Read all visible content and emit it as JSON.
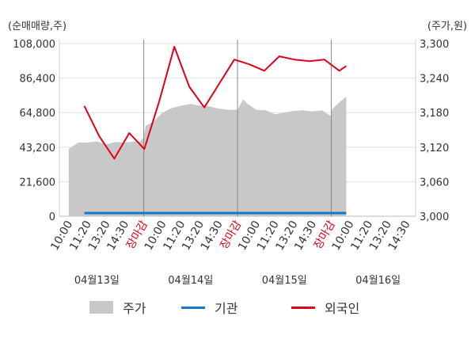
{
  "chart_data": {
    "type": "line",
    "left_axis_unit": "(순매매량,주)",
    "right_axis_unit": "(주가,원)",
    "left_ticks": [
      "108,000",
      "86,400",
      "64,800",
      "43,200",
      "21,600",
      "0"
    ],
    "right_ticks": [
      "3,300",
      "3,240",
      "3,180",
      "3,120",
      "3,060",
      "3,000"
    ],
    "ylim_left": [
      0,
      108000
    ],
    "ylim_right": [
      3000,
      3300
    ],
    "x_ticks": [
      {
        "label": "10:00",
        "color": "#333333"
      },
      {
        "label": "11:20",
        "color": "#333333"
      },
      {
        "label": "13:20",
        "color": "#333333"
      },
      {
        "label": "14:30",
        "color": "#333333"
      },
      {
        "label": "장마감",
        "color": "#e0001b"
      },
      {
        "label": "10:00",
        "color": "#333333"
      },
      {
        "label": "11:20",
        "color": "#333333"
      },
      {
        "label": "13:20",
        "color": "#333333"
      },
      {
        "label": "14:30",
        "color": "#333333"
      },
      {
        "label": "장마감",
        "color": "#e0001b"
      },
      {
        "label": "10:00",
        "color": "#333333"
      },
      {
        "label": "11:20",
        "color": "#333333"
      },
      {
        "label": "13:20",
        "color": "#333333"
      },
      {
        "label": "14:30",
        "color": "#333333"
      },
      {
        "label": "장마감",
        "color": "#e0001b"
      },
      {
        "label": "10:00",
        "color": "#333333"
      },
      {
        "label": "11:20",
        "color": "#333333"
      },
      {
        "label": "13:20",
        "color": "#333333"
      },
      {
        "label": "14:30",
        "color": "#333333"
      }
    ],
    "dates": [
      "04월13일",
      "04월14일",
      "04월15일",
      "04월16일"
    ],
    "price_series": {
      "name": "주가",
      "color": "#c8c8c8",
      "x": [
        0,
        0.5,
        1,
        1.5,
        2,
        2.5,
        3,
        3.5,
        3.8,
        4,
        4.1,
        4.5,
        5,
        5.5,
        6,
        6.5,
        7,
        7.5,
        8,
        8.5,
        9,
        9.3,
        9.5,
        10,
        10.5,
        11,
        11.5,
        12,
        12.5,
        13,
        13.5,
        13.99,
        14.05,
        14.5,
        14.8
      ],
      "values": [
        3117,
        3128,
        3128,
        3130,
        3125,
        3129,
        3128,
        3130,
        3130,
        3137,
        3157,
        3164,
        3180,
        3188,
        3192,
        3195,
        3192,
        3191,
        3187,
        3185,
        3185,
        3203,
        3196,
        3185,
        3184,
        3177,
        3180,
        3183,
        3184,
        3182,
        3184,
        3174,
        3186,
        3200,
        3208
      ]
    },
    "series": [
      {
        "name": "기관",
        "color": "#1478c8",
        "x": [
          0.83,
          14.8
        ],
        "values": [
          2000,
          2000
        ]
      },
      {
        "name": "외국인",
        "color": "#e0001b",
        "x": [
          0.83,
          1.63,
          2.43,
          3.23,
          4.03,
          4.83,
          5.63,
          6.43,
          7.23,
          8.03,
          8.83,
          9.63,
          10.43,
          11.23,
          12.03,
          12.83,
          13.63,
          14.43,
          14.8
        ],
        "values": [
          69000,
          50000,
          36000,
          52000,
          42000,
          72000,
          106000,
          81000,
          68000,
          83000,
          98000,
          95000,
          91000,
          100000,
          98000,
          97000,
          98000,
          91000,
          94000
        ]
      }
    ]
  },
  "legend": [
    {
      "label": "주가",
      "color": "#c8c8c8",
      "kind": "area"
    },
    {
      "label": "기관",
      "color": "#1478c8",
      "kind": "line"
    },
    {
      "label": "외국인",
      "color": "#e0001b",
      "kind": "line"
    }
  ]
}
